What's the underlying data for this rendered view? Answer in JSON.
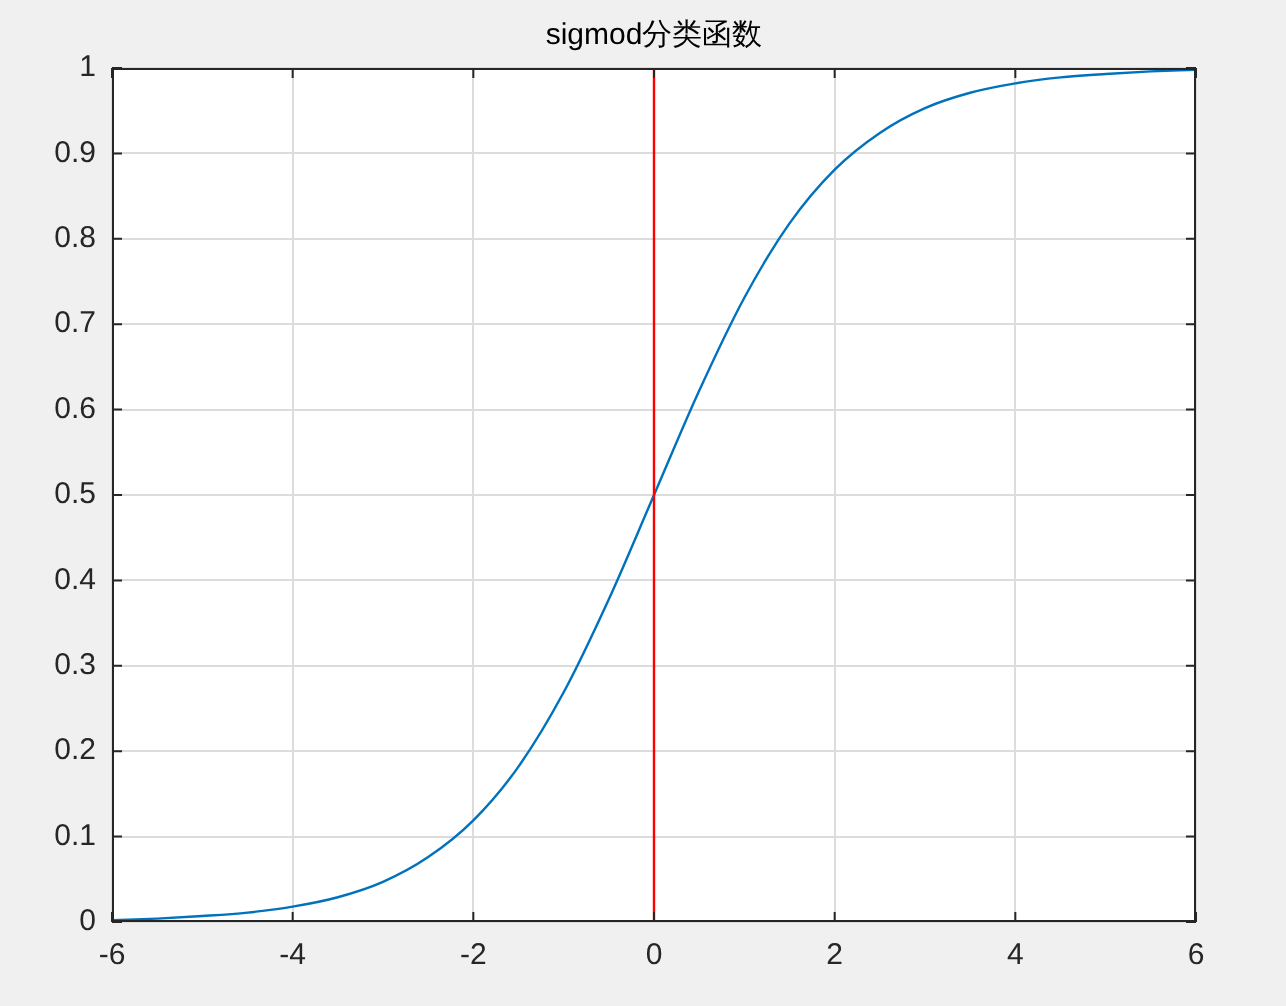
{
  "chart_data": {
    "type": "line",
    "title": "sigmod分类函数",
    "x": [
      -6,
      -5.5,
      -5,
      -4.5,
      -4,
      -3.5,
      -3,
      -2.5,
      -2,
      -1.5,
      -1,
      -0.5,
      0,
      0.5,
      1,
      1.5,
      2,
      2.5,
      3,
      3.5,
      4,
      4.5,
      5,
      5.5,
      6
    ],
    "series": [
      {
        "color": "#0072bd",
        "values": [
          0.002,
          0.004,
          0.007,
          0.011,
          0.018,
          0.029,
          0.047,
          0.076,
          0.119,
          0.182,
          0.269,
          0.378,
          0.5,
          0.622,
          0.731,
          0.818,
          0.881,
          0.924,
          0.953,
          0.971,
          0.982,
          0.989,
          0.993,
          0.996,
          0.998
        ]
      }
    ],
    "xlim": [
      -6,
      6
    ],
    "xticks": [
      -6,
      -4,
      -2,
      0,
      2,
      4,
      6
    ],
    "ylim": [
      0,
      1
    ],
    "yticks": [
      0,
      0.1,
      0.2,
      0.3,
      0.4,
      0.5,
      0.6,
      0.7,
      0.8,
      0.9,
      1
    ],
    "ref_lines": [
      {
        "axis": "x",
        "value": 0,
        "color": "#ff0000"
      }
    ],
    "grid": true,
    "marker": "none",
    "line_style": "solid",
    "legend": false
  }
}
